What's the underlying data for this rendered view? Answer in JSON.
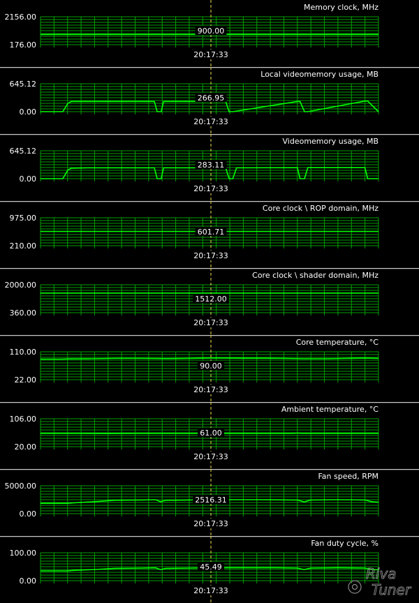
{
  "app": {
    "logo_text": "RivaTuner"
  },
  "colors": {
    "background": "#000000",
    "grid": "#00a000",
    "trace": "#00ff00",
    "separator": "#c8c8c8",
    "cursor": "#f0e050",
    "text": "#ffffff"
  },
  "cursor_time": "20:17:33",
  "chart_data": [
    {
      "type": "line",
      "title": "Memory clock, MHz",
      "ylim": [
        176.0,
        2156.0
      ],
      "ymax_label": "2156.00",
      "ymin_label": "176.00",
      "current_value": "900.00",
      "time_label": "20:17:33",
      "series": [
        {
          "x": [
            0,
            100
          ],
          "values": [
            900,
            900
          ]
        }
      ]
    },
    {
      "type": "line",
      "title": "Local videomemory usage, MB",
      "ylim": [
        0.0,
        645.12
      ],
      "ymax_label": "645.12",
      "ymin_label": "0.00",
      "current_value": "266.95",
      "time_label": "20:17:33",
      "series": [
        {
          "x": [
            0,
            6.6,
            8.1,
            9.1,
            33.7,
            34.5,
            35.7,
            36.4,
            54.8,
            55.8,
            56.9,
            76.0,
            76.8,
            78.1,
            79.1,
            96.0,
            96.8,
            100
          ],
          "values": [
            0,
            0,
            190,
            235,
            235,
            0,
            0,
            235,
            235,
            0,
            0,
            235,
            235,
            0,
            0,
            245,
            245,
            0
          ]
        }
      ]
    },
    {
      "type": "line",
      "title": "Videomemory usage, MB",
      "ylim": [
        0.0,
        645.12
      ],
      "ymax_label": "645.12",
      "ymin_label": "0.00",
      "current_value": "283.11",
      "time_label": "20:17:33",
      "series": [
        {
          "x": [
            0,
            6.6,
            8.1,
            9.1,
            14.1,
            33.7,
            34.5,
            35.7,
            36.4,
            54.8,
            55.8,
            56.9,
            58.0,
            76.0,
            76.8,
            78.1,
            79.1,
            96.0,
            96.8,
            100
          ],
          "values": [
            0,
            0,
            200,
            240,
            250,
            250,
            0,
            0,
            250,
            250,
            0,
            0,
            250,
            255,
            0,
            0,
            255,
            255,
            0,
            0
          ]
        }
      ]
    },
    {
      "type": "line",
      "title": "Core clock \\ ROP domain, MHz",
      "ylim": [
        210.0,
        975.0
      ],
      "ymax_label": "975.00",
      "ymin_label": "210.00",
      "current_value": "601.71",
      "time_label": "20:17:33",
      "series": [
        {
          "x": [
            0,
            100
          ],
          "values": [
            602,
            602
          ]
        }
      ]
    },
    {
      "type": "line",
      "title": "Core clock \\ shader domain, MHz",
      "ylim": [
        360.0,
        2000.0
      ],
      "ymax_label": "2000.00",
      "ymin_label": "360.00",
      "current_value": "1512.00",
      "time_label": "20:17:33",
      "series": [
        {
          "x": [
            0,
            100
          ],
          "values": [
            1512,
            1512
          ]
        }
      ]
    },
    {
      "type": "line",
      "title": "Core temperature, °C",
      "ylim": [
        22.0,
        110.0
      ],
      "ymax_label": "110.00",
      "ymin_label": "22.00",
      "current_value": "90.00",
      "time_label": "20:17:33",
      "series": [
        {
          "x": [
            0,
            6.0,
            8.5,
            15,
            22,
            30,
            37,
            44,
            50,
            55,
            60,
            66,
            72,
            78,
            85,
            90,
            96,
            100
          ],
          "values": [
            87,
            87,
            87.5,
            88,
            89,
            89,
            88.5,
            89,
            90,
            90,
            89.5,
            89.5,
            89,
            88,
            88,
            89,
            90,
            89
          ]
        }
      ]
    },
    {
      "type": "line",
      "title": "Ambient temperature, °C",
      "ylim": [
        20.0,
        106.0
      ],
      "ymax_label": "106.00",
      "ymin_label": "20.00",
      "current_value": "61.00",
      "time_label": "20:17:33",
      "series": [
        {
          "x": [
            0,
            10,
            20,
            30,
            40,
            50,
            60,
            70,
            75,
            76,
            77,
            80,
            90,
            100
          ],
          "values": [
            61,
            61,
            60.5,
            61,
            61,
            61,
            61,
            61,
            61,
            62,
            61,
            61,
            61,
            61
          ]
        }
      ]
    },
    {
      "type": "line",
      "title": "Fan speed, RPM",
      "ylim": [
        0.0,
        5000.0
      ],
      "ymax_label": "5000.00",
      "ymin_label": "0.00",
      "current_value": "2516.31",
      "time_label": "20:17:33",
      "series": [
        {
          "x": [
            0,
            8,
            10,
            16,
            22,
            30,
            34,
            35.5,
            37,
            44,
            50,
            55,
            57,
            64,
            70,
            76,
            78,
            80,
            88,
            96,
            98,
            100
          ],
          "values": [
            1850,
            1850,
            1950,
            2150,
            2400,
            2450,
            2500,
            2150,
            2380,
            2450,
            2500,
            2480,
            2500,
            2500,
            2480,
            2450,
            2100,
            2450,
            2500,
            2450,
            2150,
            2050
          ]
        }
      ]
    },
    {
      "type": "line",
      "title": "Fan duty cycle, %",
      "ylim": [
        0.0,
        100.0
      ],
      "ymax_label": "100.00",
      "ymin_label": "0.00",
      "current_value": "45.49",
      "time_label": "20:17:33",
      "series": [
        {
          "x": [
            0,
            8,
            10,
            16,
            22,
            30,
            34,
            35.5,
            37,
            44,
            50,
            55,
            57,
            64,
            70,
            76,
            78,
            80,
            88,
            96,
            98,
            100
          ],
          "values": [
            35,
            35,
            37,
            40,
            44,
            45,
            46,
            40,
            44,
            45,
            46,
            46,
            46,
            46,
            46,
            45,
            40,
            45,
            46,
            45,
            40,
            39
          ]
        }
      ]
    }
  ]
}
